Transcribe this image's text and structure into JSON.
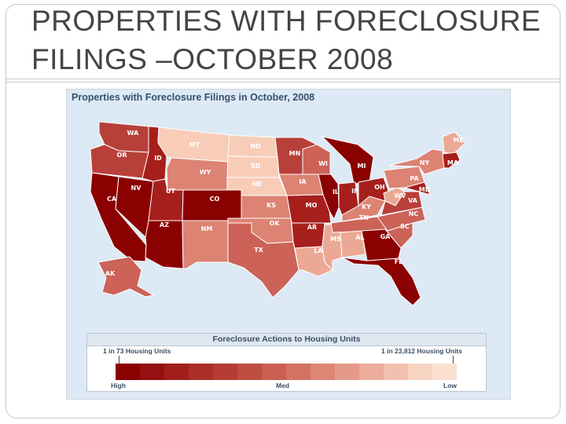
{
  "slide": {
    "title_line1": "PROPERTIES WITH FORECLOSURE",
    "title_line2": "FILINGS –OCTOBER 2008"
  },
  "map": {
    "title": "Properties with Foreclosure Filings in October, 2008",
    "colors": {
      "darkest": "#8b0000",
      "dark": "#a61f1c",
      "medium_dark": "#b8403a",
      "medium": "#cc6258",
      "medium_light": "#dc8373",
      "light": "#eba995",
      "lightest": "#f7cdb8",
      "panel_background": "#dde9f4"
    },
    "states": [
      {
        "id": "WA",
        "label": "WA",
        "level": "medium_dark"
      },
      {
        "id": "OR",
        "label": "OR",
        "level": "medium_dark"
      },
      {
        "id": "CA",
        "label": "CA",
        "level": "darkest"
      },
      {
        "id": "NV",
        "label": "NV",
        "level": "darkest"
      },
      {
        "id": "ID",
        "label": "ID",
        "level": "dark"
      },
      {
        "id": "UT",
        "label": "UT",
        "level": "dark"
      },
      {
        "id": "AZ",
        "label": "AZ",
        "level": "darkest"
      },
      {
        "id": "MT",
        "label": "MT",
        "level": "lightest"
      },
      {
        "id": "WY",
        "label": "WY",
        "level": "medium_light"
      },
      {
        "id": "CO",
        "label": "CO",
        "level": "darkest"
      },
      {
        "id": "NM",
        "label": "NM",
        "level": "medium_light"
      },
      {
        "id": "ND",
        "label": "ND",
        "level": "lightest"
      },
      {
        "id": "SD",
        "label": "SD",
        "level": "lightest"
      },
      {
        "id": "NE",
        "label": "NE",
        "level": "lightest"
      },
      {
        "id": "KS",
        "label": "KS",
        "level": "medium_light"
      },
      {
        "id": "OK",
        "label": "OK",
        "level": "medium_light"
      },
      {
        "id": "TX",
        "label": "TX",
        "level": "medium"
      },
      {
        "id": "MN",
        "label": "MN",
        "level": "medium_dark"
      },
      {
        "id": "IA",
        "label": "IA",
        "level": "medium_light"
      },
      {
        "id": "MO",
        "label": "MO",
        "level": "dark"
      },
      {
        "id": "AR",
        "label": "AR",
        "level": "dark"
      },
      {
        "id": "LA",
        "label": "LA",
        "level": "light"
      },
      {
        "id": "WI",
        "label": "WI",
        "level": "medium"
      },
      {
        "id": "IL",
        "label": "IL",
        "level": "darkest"
      },
      {
        "id": "MS",
        "label": "MS",
        "level": "light"
      },
      {
        "id": "MI",
        "label": "MI",
        "level": "darkest"
      },
      {
        "id": "IN",
        "label": "IN",
        "level": "dark"
      },
      {
        "id": "KY",
        "label": "KY",
        "level": "medium_light"
      },
      {
        "id": "TN",
        "label": "TN",
        "level": "medium"
      },
      {
        "id": "AL",
        "label": "AL",
        "level": "light"
      },
      {
        "id": "GA",
        "label": "GA",
        "level": "darkest"
      },
      {
        "id": "FL",
        "label": "FL",
        "level": "darkest"
      },
      {
        "id": "OH",
        "label": "OH",
        "level": "dark"
      },
      {
        "id": "WV",
        "label": "WV",
        "level": "light"
      },
      {
        "id": "VA",
        "label": "VA",
        "level": "medium_dark"
      },
      {
        "id": "NC",
        "label": "NC",
        "level": "medium"
      },
      {
        "id": "SC",
        "label": "SC",
        "level": "medium"
      },
      {
        "id": "PA",
        "label": "PA",
        "level": "medium_light"
      },
      {
        "id": "NY",
        "label": "NY",
        "level": "medium_light"
      },
      {
        "id": "MD",
        "label": "MD",
        "level": "dark"
      },
      {
        "id": "ME",
        "label": "ME",
        "level": "light"
      },
      {
        "id": "MA",
        "label": "MA",
        "level": "dark"
      },
      {
        "id": "AK",
        "label": "AK",
        "level": "medium"
      }
    ]
  },
  "legend": {
    "title": "Foreclosure Actions to Housing Units",
    "left_text": "1 in 73 Housing Units",
    "right_text": "1 in 23,812 Housing Units",
    "high_label": "High",
    "med_label": "Med",
    "low_label": "Low",
    "scale_colors": [
      "#8b0000",
      "#951010",
      "#a01f1c",
      "#ab2e28",
      "#b53d34",
      "#c04d41",
      "#ca5f52",
      "#d47264",
      "#dd8676",
      "#e59a89",
      "#ecad9c",
      "#f2c0ae",
      "#f7d3c1",
      "#fbe0cf"
    ]
  }
}
